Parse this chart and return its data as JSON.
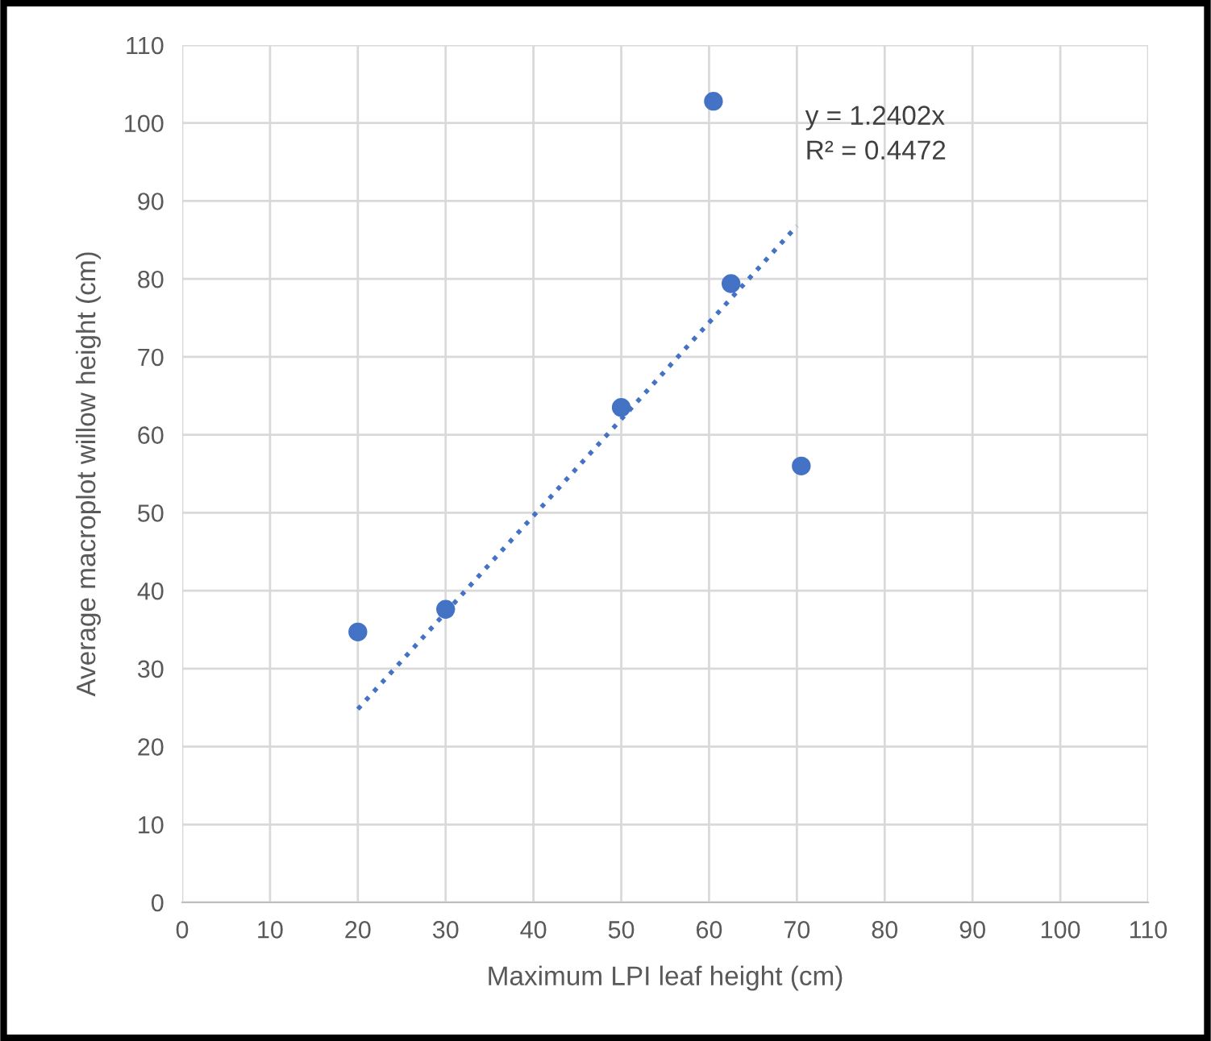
{
  "chart_data": {
    "type": "scatter",
    "xlabel": "Maximum LPI leaf height (cm)",
    "ylabel": "Average macroplot willow height (cm)",
    "x": [
      20,
      30,
      50,
      60.5,
      62.5,
      70.5
    ],
    "series": [
      {
        "color": "#4472c4",
        "values": [
          34.7,
          37.6,
          63.5,
          102.8,
          79.4,
          56.0
        ],
        "marker": "circle"
      },
      {
        "type": "line",
        "color": "#4472c4",
        "x": [
          20,
          70
        ],
        "values": [
          24.8,
          86.8
        ],
        "line_style": "dotted",
        "marker": "none"
      }
    ],
    "annotations": [
      "y = 1.2402x\nR² = 0.4472"
    ],
    "xlim": [
      0,
      110
    ],
    "xticks": [
      0,
      10,
      20,
      30,
      40,
      50,
      60,
      70,
      80,
      90,
      100,
      110
    ],
    "ylim": [
      0,
      110
    ],
    "yticks": [
      0,
      10,
      20,
      30,
      40,
      50,
      60,
      70,
      80,
      90,
      100,
      110
    ],
    "grid": true,
    "legend": false
  }
}
